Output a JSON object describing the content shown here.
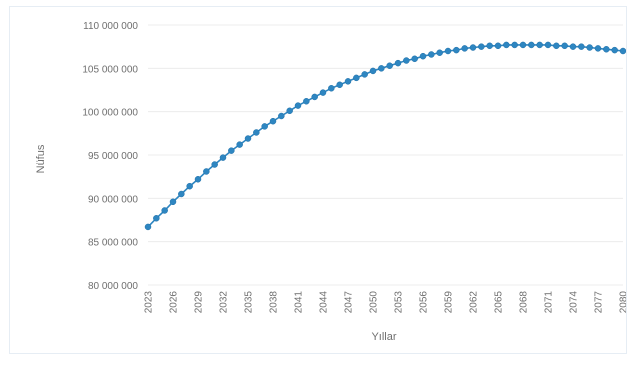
{
  "chart_data": {
    "type": "line",
    "title": "",
    "xlabel": "Yıllar",
    "ylabel": "Nüfus",
    "ylim": [
      80000000,
      110000000
    ],
    "yticks": [
      80000000,
      85000000,
      90000000,
      95000000,
      100000000,
      105000000,
      110000000
    ],
    "ytick_labels": [
      "80 000 000",
      "85 000 000",
      "90 000 000",
      "95 000 000",
      "100 000 000",
      "105 000 000",
      "110 000 000"
    ],
    "xlim": [
      2023,
      2080
    ],
    "xtick_labels": [
      "2023",
      "2026",
      "2029",
      "2032",
      "2035",
      "2038",
      "2041",
      "2044",
      "2047",
      "2050",
      "2053",
      "2056",
      "2059",
      "2062",
      "2065",
      "2068",
      "2071",
      "2074",
      "2077",
      "2080"
    ],
    "grid": "horizontal",
    "legend": "none",
    "marker_color": "#2e86c1",
    "series": [
      {
        "name": "",
        "x": [
          2023,
          2024,
          2025,
          2026,
          2027,
          2028,
          2029,
          2030,
          2031,
          2032,
          2033,
          2034,
          2035,
          2036,
          2037,
          2038,
          2039,
          2040,
          2041,
          2042,
          2043,
          2044,
          2045,
          2046,
          2047,
          2048,
          2049,
          2050,
          2051,
          2052,
          2053,
          2054,
          2055,
          2056,
          2057,
          2058,
          2059,
          2060,
          2061,
          2062,
          2063,
          2064,
          2065,
          2066,
          2067,
          2068,
          2069,
          2070,
          2071,
          2072,
          2073,
          2074,
          2075,
          2076,
          2077,
          2078,
          2079,
          2080
        ],
        "values": [
          86700000,
          87700000,
          88600000,
          89600000,
          90500000,
          91400000,
          92200000,
          93100000,
          93900000,
          94700000,
          95500000,
          96200000,
          96900000,
          97600000,
          98300000,
          98900000,
          99500000,
          100100000,
          100700000,
          101200000,
          101700000,
          102200000,
          102700000,
          103100000,
          103500000,
          103900000,
          104300000,
          104700000,
          105000000,
          105300000,
          105600000,
          105900000,
          106100000,
          106400000,
          106600000,
          106800000,
          107000000,
          107100000,
          107300000,
          107400000,
          107500000,
          107600000,
          107600000,
          107700000,
          107700000,
          107700000,
          107700000,
          107700000,
          107700000,
          107600000,
          107600000,
          107500000,
          107500000,
          107400000,
          107300000,
          107200000,
          107100000,
          107000000
        ]
      }
    ]
  }
}
